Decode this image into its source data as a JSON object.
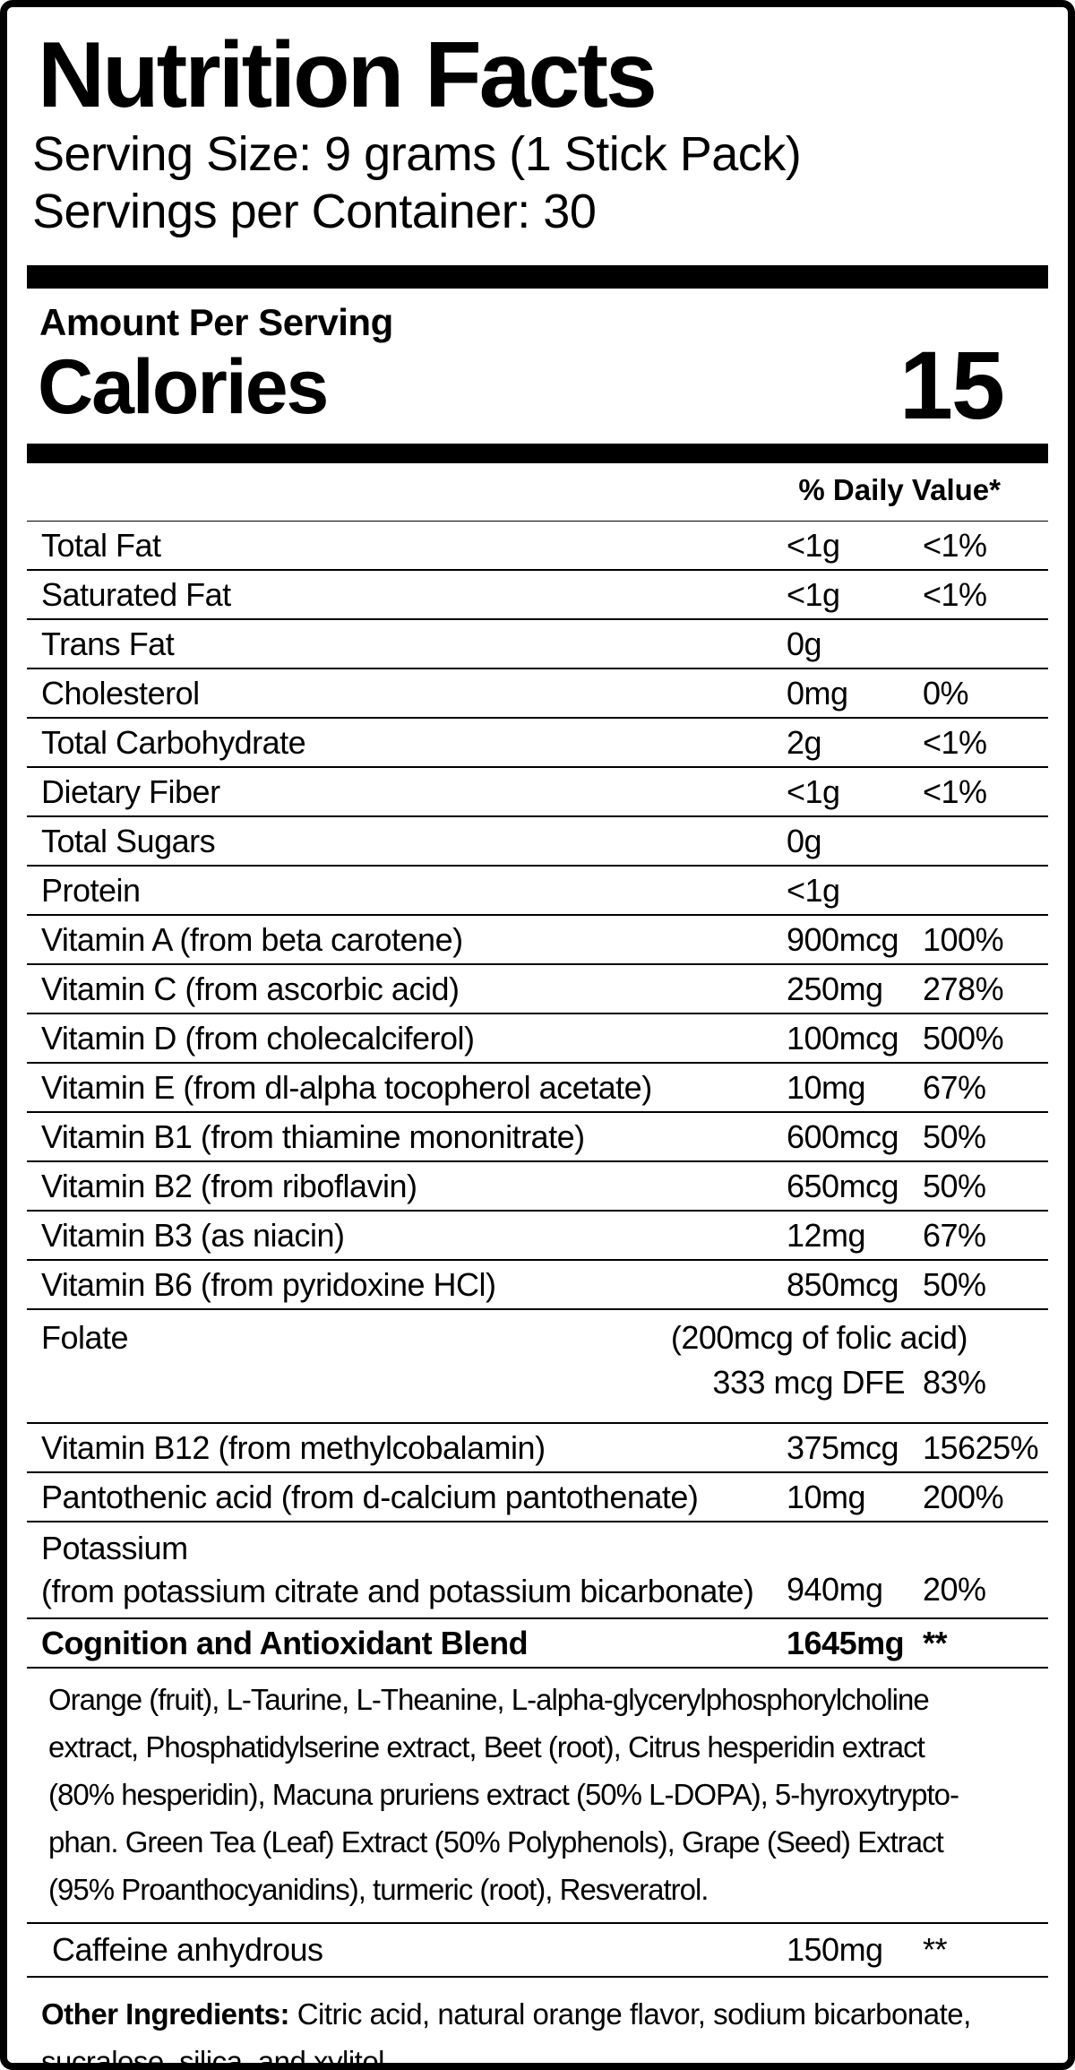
{
  "header": {
    "title": "Nutrition Facts",
    "serving_size": "Serving Size: 9 grams (1 Stick Pack)",
    "servings_per_container": "Servings per Container: 30"
  },
  "calories": {
    "section_label": "Amount Per Serving",
    "label": "Calories",
    "value": "15"
  },
  "daily_value_header": "% Daily Value*",
  "nutrient_rows": [
    {
      "type": "simple",
      "label": "Total Fat",
      "amount": "<1g",
      "pct": "<1%"
    },
    {
      "type": "simple",
      "label": "Saturated Fat",
      "amount": "<1g",
      "pct": "<1%"
    },
    {
      "type": "simple",
      "label": "Trans Fat",
      "amount": "0g",
      "pct": ""
    },
    {
      "type": "simple",
      "label": "Cholesterol",
      "amount": "0mg",
      "pct": "0%"
    },
    {
      "type": "simple",
      "label": "Total Carbohydrate",
      "amount": "2g",
      "pct": "<1%"
    },
    {
      "type": "simple",
      "label": "Dietary Fiber",
      "amount": "<1g",
      "pct": "<1%"
    },
    {
      "type": "simple",
      "label": "Total Sugars",
      "amount": "0g",
      "pct": ""
    },
    {
      "type": "simple",
      "label": "Protein",
      "amount": "<1g",
      "pct": ""
    },
    {
      "type": "simple",
      "label": "Vitamin A (from beta carotene)",
      "amount": "900mcg",
      "pct": "100%"
    },
    {
      "type": "simple",
      "label": "Vitamin C (from ascorbic acid)",
      "amount": "250mg",
      "pct": "278%"
    },
    {
      "type": "simple",
      "label": "Vitamin D (from cholecalciferol)",
      "amount": "100mcg",
      "pct": "500%"
    },
    {
      "type": "simple",
      "label": "Vitamin E (from dl-alpha tocopherol acetate)",
      "amount": "10mg",
      "pct": "67%"
    },
    {
      "type": "simple",
      "label": "Vitamin B1 (from thiamine mononitrate)",
      "amount": "600mcg",
      "pct": "50%"
    },
    {
      "type": "simple",
      "label": "Vitamin B2 (from riboflavin)",
      "amount": "650mcg",
      "pct": "50%"
    },
    {
      "type": "simple",
      "label": "Vitamin B3 (as niacin)",
      "amount": "12mg",
      "pct": "67%"
    },
    {
      "type": "simple",
      "label": "Vitamin B6 (from pyridoxine HCl)",
      "amount": "850mcg",
      "pct": "50%"
    },
    {
      "type": "folate",
      "label": "Folate",
      "note": "(200mcg of folic acid)",
      "amount": "333 mcg DFE",
      "pct": "83%"
    },
    {
      "type": "simple",
      "label": "Vitamin B12 (from methylcobalamin)",
      "amount": "375mcg",
      "pct": "15625%"
    },
    {
      "type": "simple",
      "label": "Pantothenic acid (from d-calcium pantothenate)",
      "amount": "10mg",
      "pct": "200%"
    },
    {
      "type": "two-line",
      "label": "Potassium",
      "label2": "(from potassium citrate and potassium bicarbonate)",
      "amount": "940mg",
      "pct": "20%"
    },
    {
      "type": "bold",
      "label": "Cognition and Antioxidant Blend",
      "amount": "1645mg",
      "pct": "**"
    }
  ],
  "blend_description_lines": [
    "Orange (fruit), L-Taurine, L-Theanine, L-alpha-glycerylphosphorylcholine",
    "extract, Phosphatidylserine extract, Beet (root), Citrus hesperidin extract",
    "(80% hesperidin), Macuna pruriens extract (50% L-DOPA), 5-hyroxytrypto-",
    "phan. Green Tea (Leaf) Extract (50% Polyphenols), Grape (Seed) Extract",
    "(95% Proanthocyanidins), turmeric (root), Resveratrol."
  ],
  "caffeine_row": {
    "label": "Caffeine anhydrous",
    "amount": "150mg",
    "pct": "**"
  },
  "other_ingredients": {
    "prefix": "Other Ingredients:",
    "line1_rest": " Citric acid, natural orange flavor, sodium bicarbonate,",
    "line2": "sucralose, silica, and xylitol."
  },
  "colors": {
    "text": "#000000",
    "background": "#ffffff",
    "border": "#000000"
  }
}
